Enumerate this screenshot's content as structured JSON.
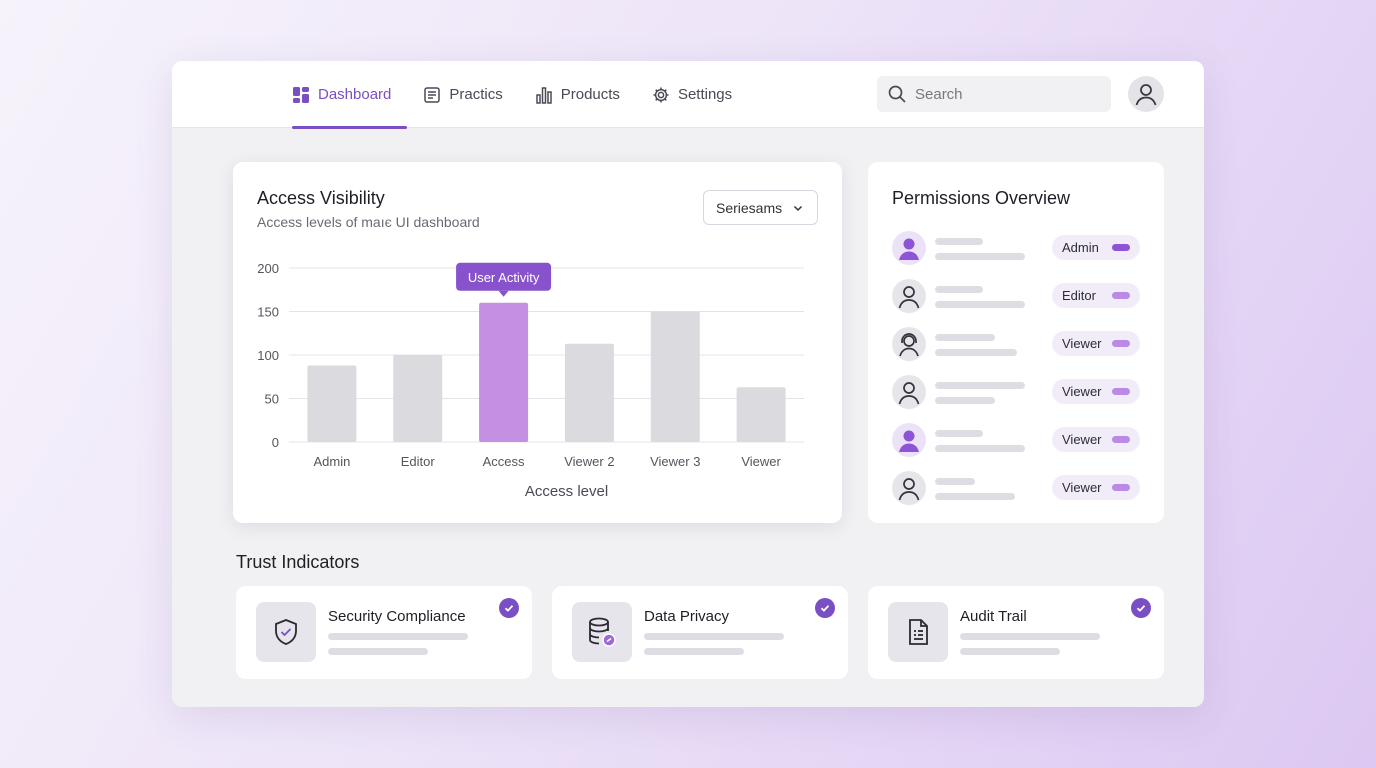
{
  "nav": {
    "items": [
      {
        "label": "Dashboard",
        "icon": "dashboard-icon",
        "active": true
      },
      {
        "label": "Practics",
        "icon": "document-icon",
        "active": false
      },
      {
        "label": "Products",
        "icon": "bar-chart-icon",
        "active": false
      },
      {
        "label": "Settings",
        "icon": "gear-icon",
        "active": false
      }
    ]
  },
  "search": {
    "placeholder": "Search"
  },
  "chart_card": {
    "title": "Access Visibility",
    "subtitle": "Access levels of maıє UI dashboard",
    "select_value": "Seriesams"
  },
  "chart_data": {
    "type": "bar",
    "categories": [
      "Admin",
      "Editor",
      "Access",
      "Viewer 2",
      "Viewer 3",
      "Viewer"
    ],
    "values": [
      88,
      100,
      160,
      113,
      150,
      63
    ],
    "highlight_index": 2,
    "tooltip": "User Activity",
    "xlabel": "Access level",
    "ylabel": "",
    "ylim": [
      0,
      200
    ],
    "yticks": [
      0,
      50,
      100,
      150,
      200
    ],
    "grid": true,
    "colors": {
      "bar": "#dadadf",
      "highlight": "#c58fe3",
      "tooltip": "#8752cc"
    }
  },
  "permissions": {
    "title": "Permissions Overview",
    "rows": [
      {
        "role": "Admin",
        "avatar": "filled-purple",
        "strong": true
      },
      {
        "role": "Editor",
        "avatar": "outline",
        "strong": false
      },
      {
        "role": "Viewer",
        "avatar": "headset",
        "strong": false
      },
      {
        "role": "Viewer",
        "avatar": "outline",
        "strong": false
      },
      {
        "role": "Viewer",
        "avatar": "filled-purple",
        "strong": false
      },
      {
        "role": "Viewer",
        "avatar": "outline",
        "strong": false
      }
    ]
  },
  "trust": {
    "title": "Trust Indicators",
    "cards": [
      {
        "label": "Security Compliance",
        "icon": "shield-check-icon"
      },
      {
        "label": "Data Privacy",
        "icon": "database-lock-icon"
      },
      {
        "label": "Audit Trail",
        "icon": "audit-document-icon"
      }
    ]
  },
  "colors": {
    "accent": "#7a4fc4",
    "background": "#f1f1f3"
  }
}
